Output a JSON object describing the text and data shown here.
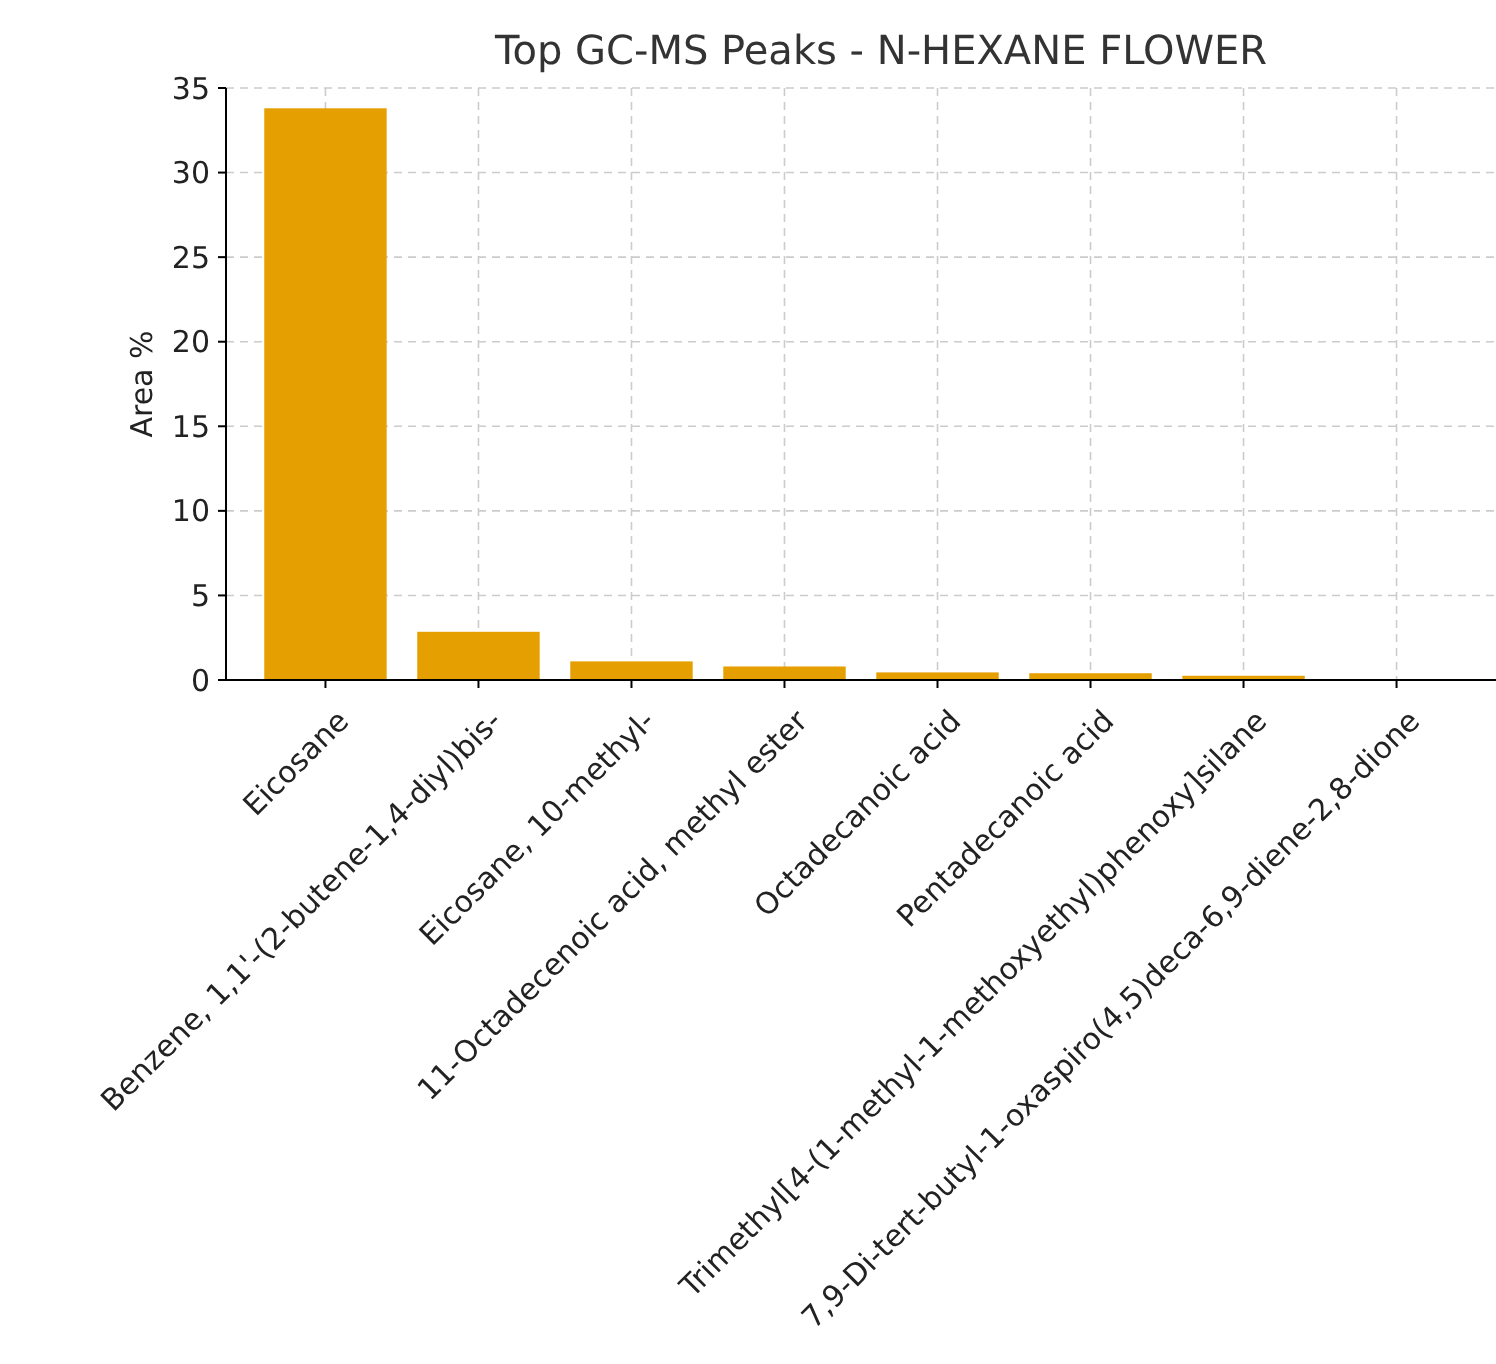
{
  "chart_data": {
    "type": "bar",
    "title": "Top GC-MS Peaks - N-HEXANE FLOWER",
    "ylabel": "Area %",
    "categories": [
      "Eicosane",
      "Benzene, 1,1'-(2-butene-1,4-diyl)bis-",
      "Eicosane, 10-methyl-",
      "11-Octadecenoic acid, methyl ester",
      "Octadecanoic acid",
      "Pentadecanoic acid",
      "Trimethyl[4-(1-methyl-1-methoxyethyl)phenoxy]silane",
      "7,9-Di-tert-butyl-1-oxaspiro(4,5)deca-6,9-diene-2,8-dione"
    ],
    "values": [
      33.8,
      2.85,
      1.1,
      0.8,
      0.45,
      0.4,
      0.25,
      0.05
    ],
    "color": "#e69f00",
    "ylim": [
      0,
      35
    ],
    "yticks": [
      0,
      5,
      10,
      15,
      20,
      25,
      30,
      35
    ],
    "grid": true
  }
}
